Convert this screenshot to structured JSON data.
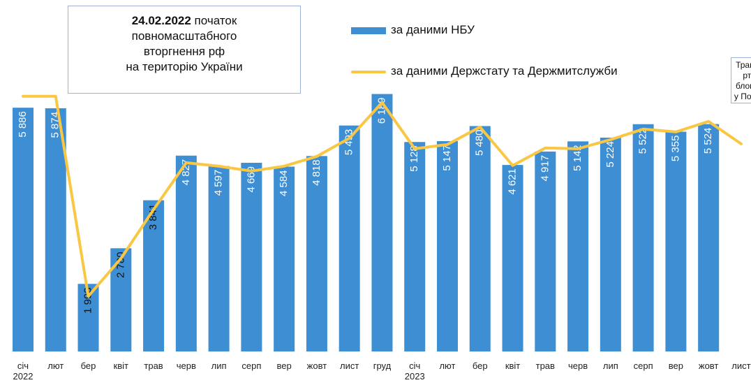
{
  "chart_data": {
    "type": "bar_line",
    "categories": [
      "січ\n2022",
      "лют",
      "бер",
      "квіт",
      "трав",
      "черв",
      "лип",
      "серп",
      "вер",
      "жовт",
      "лист",
      "груд",
      "січ\n2023",
      "лют",
      "бер",
      "квіт",
      "трав",
      "черв",
      "лип",
      "серп",
      "вер",
      "жовт",
      "лист"
    ],
    "series": [
      {
        "name": "за даними НБУ",
        "color": "#3d8ed3",
        "kind": "bar",
        "values": [
          5886,
          5874,
          1993,
          2780,
          3841,
          4827,
          4597,
          4669,
          4584,
          4818,
          5493,
          6189,
          5128,
          5147,
          5480,
          4621,
          4917,
          5142,
          5224,
          5522,
          5355,
          5524,
          null
        ],
        "value_labels": [
          "5 886",
          "5 874",
          "1 993",
          "2 780",
          "3 841",
          "4 827",
          "4 597",
          "4 669",
          "4 584",
          "4 818",
          "5 493",
          "6 189",
          "5 128",
          "5 147",
          "5 480",
          "4 621",
          "4 917",
          "5 142",
          "5 224",
          "5 522",
          "5 355",
          "5 524",
          null
        ]
      },
      {
        "name": "за даними Держстату та Держмитслужби",
        "color": "#f9c744",
        "kind": "line",
        "values": [
          6140,
          6140,
          1720,
          2555,
          3636,
          4671,
          4594,
          4486,
          4594,
          4810,
          5212,
          6000,
          4980,
          5073,
          5459,
          4609,
          4996,
          4980,
          5181,
          5413,
          5351,
          5583,
          5088
        ]
      }
    ],
    "ylim": [
      500,
      7000
    ],
    "annotations": [
      {
        "bold": "24.02.2022",
        "lines": [
          "початок",
          "повномасштабного",
          "вторгнення рф",
          "на територію України"
        ]
      },
      {
        "lines": [
          "Транспо",
          "ртна",
          "блокада",
          "у Польщі"
        ]
      }
    ]
  }
}
